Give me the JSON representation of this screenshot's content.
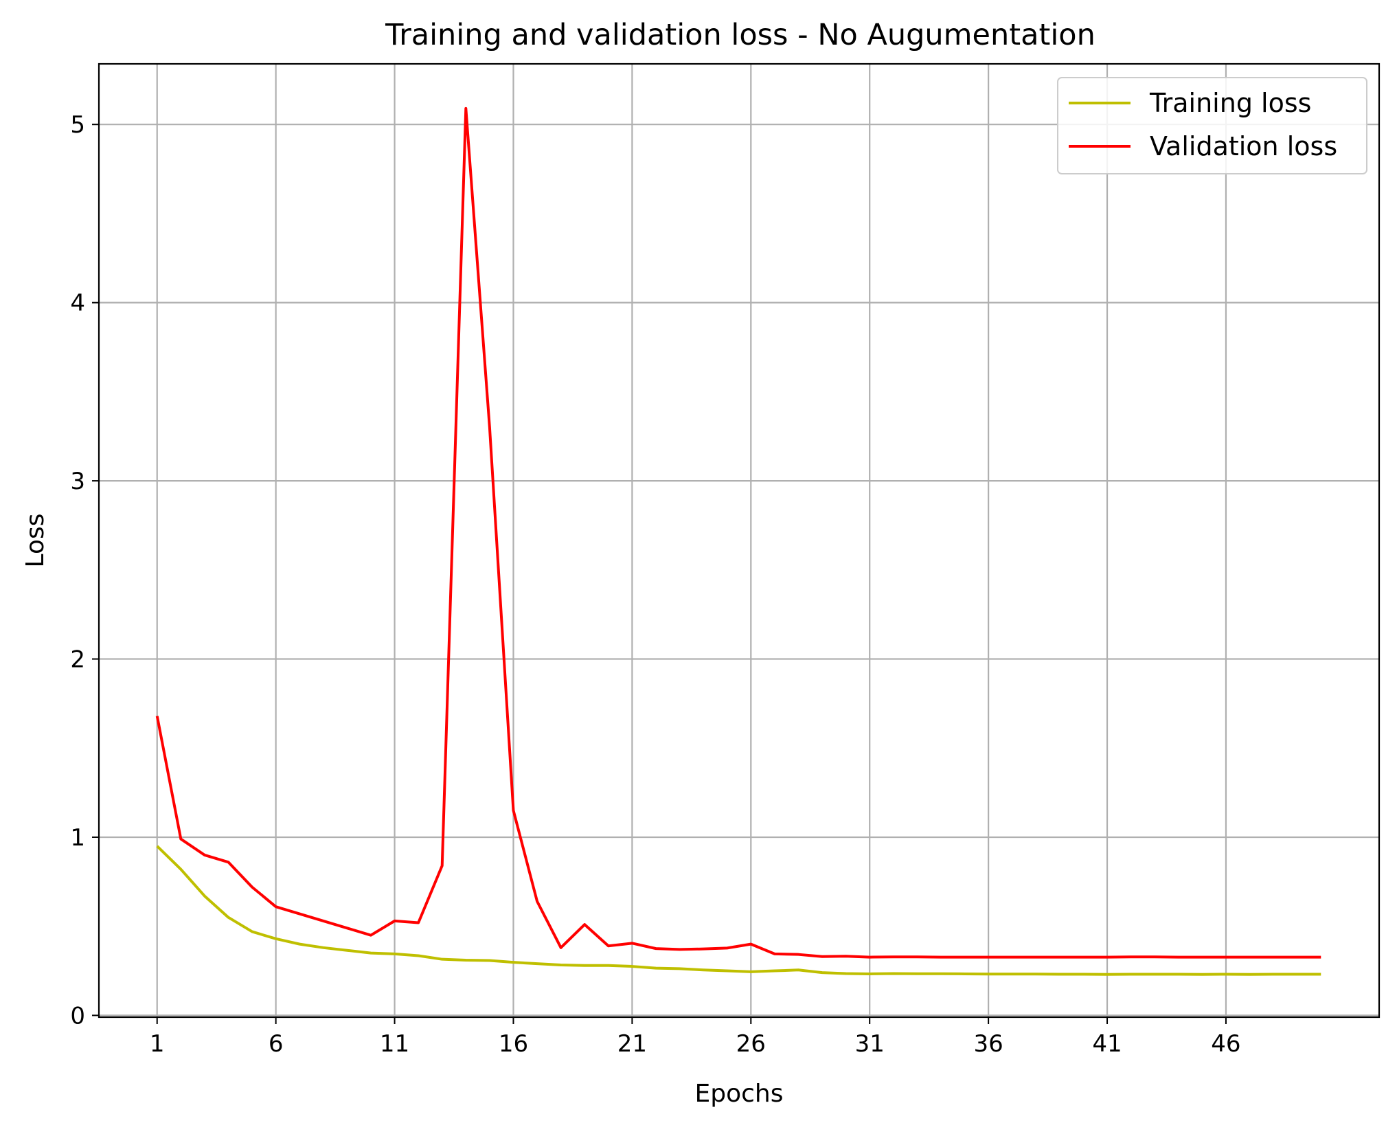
{
  "chart_data": {
    "type": "line",
    "title": "Training and validation loss - No Augumentation",
    "xlabel": "Epochs",
    "ylabel": "Loss",
    "xlim": [
      -1.45,
      52.45
    ],
    "ylim": [
      -0.01,
      5.34
    ],
    "xticks": [
      1,
      6,
      11,
      16,
      21,
      26,
      31,
      36,
      41,
      46
    ],
    "yticks": [
      0,
      1,
      2,
      3,
      4,
      5
    ],
    "grid": true,
    "legend_position": "top-right",
    "x": [
      1,
      2,
      3,
      4,
      5,
      6,
      7,
      8,
      9,
      10,
      11,
      12,
      13,
      14,
      15,
      16,
      17,
      18,
      19,
      20,
      21,
      22,
      23,
      24,
      25,
      26,
      27,
      28,
      29,
      30,
      31,
      32,
      33,
      34,
      35,
      36,
      37,
      38,
      39,
      40,
      41,
      42,
      43,
      44,
      45,
      46,
      47,
      48,
      49,
      50
    ],
    "series": [
      {
        "name": "Training loss",
        "color": "#bfbf00",
        "values": [
          0.95,
          0.82,
          0.67,
          0.55,
          0.47,
          0.43,
          0.4,
          0.38,
          0.365,
          0.35,
          0.345,
          0.335,
          0.315,
          0.31,
          0.308,
          0.298,
          0.29,
          0.283,
          0.28,
          0.28,
          0.275,
          0.265,
          0.262,
          0.255,
          0.25,
          0.245,
          0.25,
          0.255,
          0.24,
          0.235,
          0.233,
          0.235,
          0.234,
          0.234,
          0.233,
          0.232,
          0.232,
          0.232,
          0.231,
          0.231,
          0.23,
          0.231,
          0.231,
          0.231,
          0.23,
          0.231,
          0.23,
          0.231,
          0.231,
          0.231
        ]
      },
      {
        "name": "Validation loss",
        "color": "#ff0000",
        "values": [
          1.68,
          0.99,
          0.9,
          0.86,
          0.72,
          0.61,
          0.57,
          0.53,
          0.49,
          0.45,
          0.53,
          0.52,
          0.84,
          5.09,
          3.3,
          1.15,
          0.64,
          0.38,
          0.51,
          0.39,
          0.405,
          0.375,
          0.37,
          0.373,
          0.378,
          0.4,
          0.345,
          0.342,
          0.33,
          0.332,
          0.327,
          0.328,
          0.328,
          0.327,
          0.327,
          0.327,
          0.327,
          0.327,
          0.327,
          0.327,
          0.327,
          0.328,
          0.328,
          0.327,
          0.327,
          0.327,
          0.327,
          0.327,
          0.327,
          0.327
        ]
      }
    ]
  }
}
